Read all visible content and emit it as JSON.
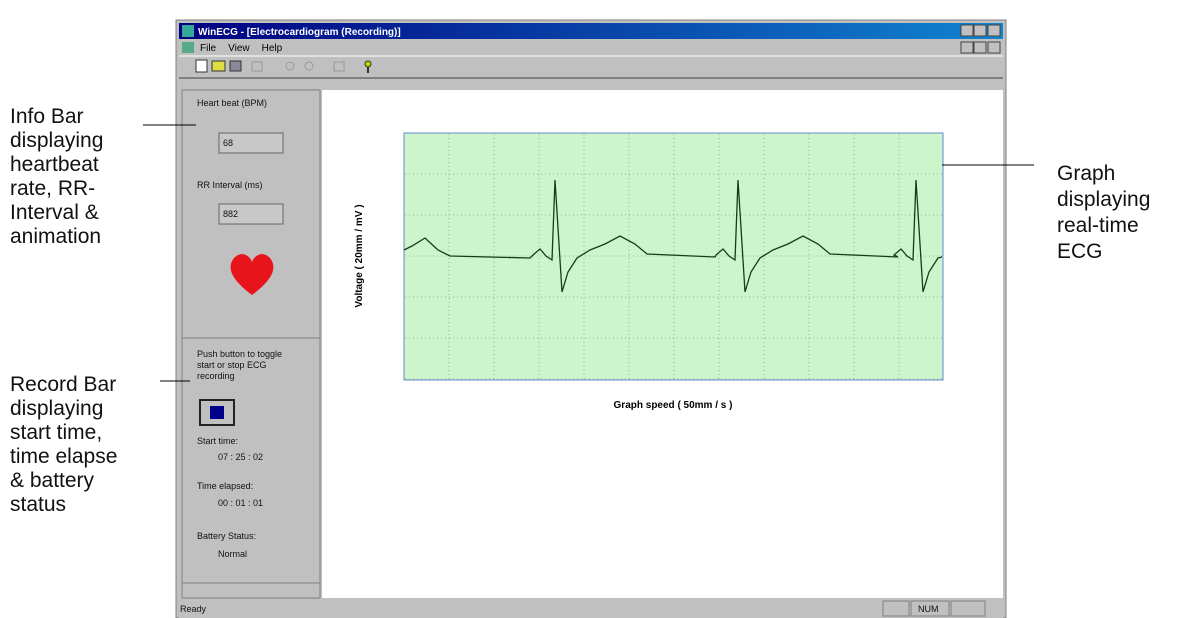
{
  "window": {
    "title": "WinECG - [Electrocardiogram (Recording)]",
    "menu": [
      "File",
      "View",
      "Help"
    ]
  },
  "info_bar": {
    "heartbeat_label": "Heart beat (BPM)",
    "heartbeat": "68",
    "rr_label": "RR Interval (ms)",
    "rr": "882"
  },
  "record_bar": {
    "instruction": [
      "Push button to toggle",
      "start or stop ECG",
      "recording"
    ],
    "start_label": "Start time:",
    "start": "07 : 25 : 02",
    "elapsed_label": "Time elapsed:",
    "elapsed": "00 : 01 : 01",
    "battery_label": "Battery Status:",
    "battery": "Normal"
  },
  "graph": {
    "y_label": "Voltage ( 20mm / mV )",
    "x_label": "Graph speed ( 50mm / s )"
  },
  "status_bar": {
    "text": "Ready",
    "num": "NUM"
  },
  "annotations": {
    "info": [
      "Info Bar",
      "displaying",
      "heartbeat",
      "rate, RR-",
      "Interval &",
      "animation"
    ],
    "record": [
      "Record Bar",
      "displaying",
      "start time,",
      "time elapse",
      "& battery",
      "status"
    ],
    "graph": [
      "Graph",
      "displaying",
      "real-time",
      "ECG"
    ]
  }
}
